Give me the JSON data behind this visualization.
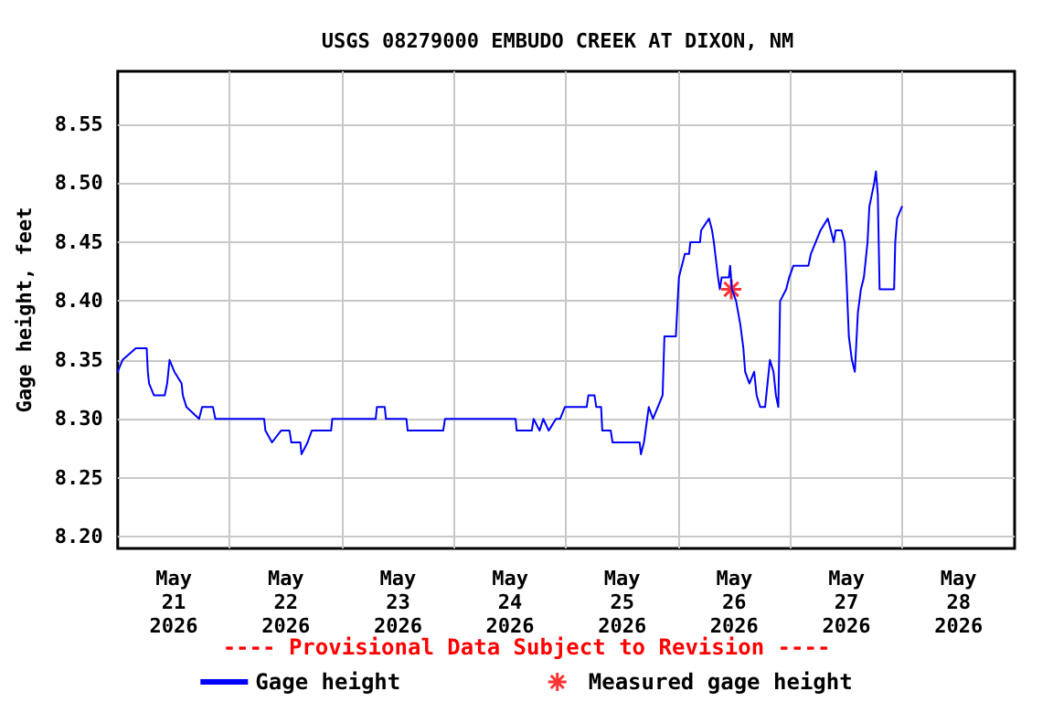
{
  "chart_data": {
    "type": "line",
    "title": "USGS 08279000 EMBUDO CREEK AT DIXON, NM",
    "ylabel": "Gage height, feet",
    "annotations": [
      "---- Provisional Data Subject to Revision ----"
    ],
    "xlim": [
      "2026-05-21T00:00",
      "2026-05-29T00:00"
    ],
    "xticks": [
      {
        "value": "2026-05-21T12:00",
        "label": "May\n21\n2026"
      },
      {
        "value": "2026-05-22T12:00",
        "label": "May\n22\n2026"
      },
      {
        "value": "2026-05-23T12:00",
        "label": "May\n23\n2026"
      },
      {
        "value": "2026-05-24T12:00",
        "label": "May\n24\n2026"
      },
      {
        "value": "2026-05-25T12:00",
        "label": "May\n25\n2026"
      },
      {
        "value": "2026-05-26T12:00",
        "label": "May\n26\n2026"
      },
      {
        "value": "2026-05-27T12:00",
        "label": "May\n27\n2026"
      },
      {
        "value": "2026-05-28T12:00",
        "label": "May\n28\n2026"
      },
      {
        "value": "2026-05-22T00:00",
        "label": null
      },
      {
        "value": "2026-05-23T00:00",
        "label": null
      },
      {
        "value": "2026-05-24T00:00",
        "label": null
      },
      {
        "value": "2026-05-25T00:00",
        "label": null
      },
      {
        "value": "2026-05-26T00:00",
        "label": null
      },
      {
        "value": "2026-05-27T00:00",
        "label": null
      },
      {
        "value": "2026-05-28T00:00",
        "label": null
      }
    ],
    "ylim": [
      8.19,
      8.595
    ],
    "yticks": [
      {
        "value": 8.2,
        "label": "8.20"
      },
      {
        "value": 8.25,
        "label": "8.25"
      },
      {
        "value": 8.3,
        "label": "8.30"
      },
      {
        "value": 8.35,
        "label": "8.35"
      },
      {
        "value": 8.4,
        "label": "8.40"
      },
      {
        "value": 8.45,
        "label": "8.45"
      },
      {
        "value": 8.5,
        "label": "8.50"
      },
      {
        "value": 8.55,
        "label": "8.55"
      }
    ],
    "grid": true,
    "legend": "bottom",
    "series": [
      {
        "name": "Gage height",
        "color": "#0000ff",
        "marker": "none",
        "x": [
          "2026-05-21T00:00",
          "2026-05-21T01:02",
          "2026-05-21T03:52",
          "2026-05-21T06:12",
          "2026-05-21T06:27",
          "2026-05-21T06:43",
          "2026-05-21T07:45",
          "2026-05-21T10:04",
          "2026-05-21T10:35",
          "2026-05-21T11:06",
          "2026-05-21T12:08",
          "2026-05-21T13:41",
          "2026-05-21T13:56",
          "2026-05-21T14:43",
          "2026-05-21T17:25",
          "2026-05-21T18:04",
          "2026-05-21T20:23",
          "2026-05-21T20:54",
          "2026-05-22T07:21",
          "2026-05-22T07:37",
          "2026-05-22T09:02",
          "2026-05-22T10:58",
          "2026-05-22T12:46",
          "2026-05-22T13:10",
          "2026-05-22T15:06",
          "2026-05-22T15:21",
          "2026-05-22T16:39",
          "2026-05-22T17:33",
          "2026-05-22T21:41",
          "2026-05-22T21:56",
          "2026-05-23T07:14",
          "2026-05-23T07:29",
          "2026-05-23T09:10",
          "2026-05-23T09:25",
          "2026-05-23T13:48",
          "2026-05-23T14:04",
          "2026-05-23T21:41",
          "2026-05-23T22:04",
          "2026-05-24T13:10",
          "2026-05-24T13:25",
          "2026-05-24T16:39",
          "2026-05-24T17:02",
          "2026-05-24T18:19",
          "2026-05-24T19:06",
          "2026-05-24T20:16",
          "2026-05-24T21:49",
          "2026-05-24T22:43",
          "2026-05-24T23:44",
          "2026-05-25T04:23",
          "2026-05-25T04:46",
          "2026-05-25T06:04",
          "2026-05-25T06:27",
          "2026-05-25T07:29",
          "2026-05-25T07:44",
          "2026-05-25T09:33",
          "2026-05-25T09:56",
          "2026-05-25T15:44",
          "2026-05-25T16:00",
          "2026-05-25T16:39",
          "2026-05-25T17:41",
          "2026-05-25T18:35",
          "2026-05-25T19:37",
          "2026-05-25T20:39",
          "2026-05-25T21:02",
          "2026-05-25T23:29",
          "2026-05-26T00:08",
          "2026-05-26T00:46",
          "2026-05-26T01:25",
          "2026-05-26T02:19",
          "2026-05-26T02:35",
          "2026-05-26T04:39",
          "2026-05-26T04:54",
          "2026-05-26T06:35",
          "2026-05-26T07:14",
          "2026-05-26T07:37",
          "2026-05-26T08:31",
          "2026-05-26T08:54",
          "2026-05-26T09:17",
          "2026-05-26T10:50",
          "2026-05-26T11:06",
          "2026-05-26T11:29",
          "2026-05-26T12:23",
          "2026-05-26T13:17",
          "2026-05-26T13:56",
          "2026-05-26T14:19",
          "2026-05-26T15:14",
          "2026-05-26T16:15",
          "2026-05-26T16:46",
          "2026-05-26T17:33",
          "2026-05-26T18:35",
          "2026-05-26T19:06",
          "2026-05-26T19:37",
          "2026-05-26T20:23",
          "2026-05-26T20:54",
          "2026-05-26T21:25",
          "2026-05-26T21:48",
          "2026-05-26T23:06",
          "2026-05-26T23:44",
          "2026-05-27T00:39",
          "2026-05-27T03:52",
          "2026-05-27T04:23",
          "2026-05-27T05:25",
          "2026-05-27T06:27",
          "2026-05-27T08:00",
          "2026-05-27T08:39",
          "2026-05-27T09:17",
          "2026-05-27T09:41",
          "2026-05-27T10:58",
          "2026-05-27T11:37",
          "2026-05-27T12:00",
          "2026-05-27T12:31",
          "2026-05-27T13:10",
          "2026-05-27T13:48",
          "2026-05-27T14:27",
          "2026-05-27T15:06",
          "2026-05-27T15:44",
          "2026-05-27T16:31",
          "2026-05-27T16:54",
          "2026-05-27T17:25",
          "2026-05-27T17:56",
          "2026-05-27T18:19",
          "2026-05-27T18:43",
          "2026-05-27T19:06",
          "2026-05-27T22:12",
          "2026-05-27T22:27",
          "2026-05-27T22:50",
          "2026-05-27T23:52"
        ],
        "values": [
          8.34,
          8.35,
          8.36,
          8.36,
          8.34,
          8.33,
          8.32,
          8.32,
          8.33,
          8.35,
          8.34,
          8.33,
          8.32,
          8.31,
          8.3,
          8.31,
          8.31,
          8.3,
          8.3,
          8.29,
          8.28,
          8.29,
          8.29,
          8.28,
          8.28,
          8.27,
          8.28,
          8.29,
          8.29,
          8.3,
          8.3,
          8.31,
          8.31,
          8.3,
          8.3,
          8.29,
          8.29,
          8.3,
          8.3,
          8.29,
          8.29,
          8.3,
          8.29,
          8.3,
          8.29,
          8.3,
          8.3,
          8.31,
          8.31,
          8.32,
          8.32,
          8.31,
          8.31,
          8.29,
          8.29,
          8.28,
          8.28,
          8.27,
          8.28,
          8.31,
          8.3,
          8.31,
          8.32,
          8.37,
          8.37,
          8.42,
          8.43,
          8.44,
          8.44,
          8.45,
          8.45,
          8.46,
          8.47,
          8.46,
          8.45,
          8.42,
          8.41,
          8.42,
          8.42,
          8.43,
          8.41,
          8.4,
          8.38,
          8.36,
          8.34,
          8.33,
          8.34,
          8.32,
          8.31,
          8.31,
          8.33,
          8.35,
          8.34,
          8.32,
          8.31,
          8.4,
          8.41,
          8.42,
          8.43,
          8.43,
          8.44,
          8.45,
          8.46,
          8.47,
          8.46,
          8.45,
          8.46,
          8.46,
          8.45,
          8.42,
          8.37,
          8.35,
          8.34,
          8.39,
          8.41,
          8.42,
          8.45,
          8.48,
          8.49,
          8.5,
          8.51,
          8.49,
          8.41,
          8.41,
          8.45,
          8.47,
          8.48
        ]
      },
      {
        "name": "Measured gage height",
        "type": "scatter",
        "color": "#ff0000",
        "marker": "cross",
        "x": [
          "2026-05-26T11:21"
        ],
        "values": [
          8.41
        ]
      }
    ]
  }
}
